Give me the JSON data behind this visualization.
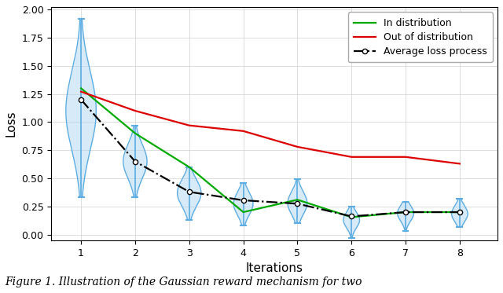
{
  "iterations": [
    1,
    2,
    3,
    4,
    5,
    6,
    7,
    8
  ],
  "in_dist": [
    1.3,
    0.9,
    0.6,
    0.2,
    0.31,
    0.155,
    0.2,
    0.2
  ],
  "out_dist": [
    1.27,
    1.1,
    0.97,
    0.92,
    0.78,
    0.69,
    0.69,
    0.63
  ],
  "avg_loss": [
    1.2,
    0.65,
    0.38,
    0.305,
    0.275,
    0.162,
    0.2,
    0.2
  ],
  "violin_centers": [
    1.1,
    0.65,
    0.37,
    0.275,
    0.28,
    0.13,
    0.19,
    0.185
  ],
  "violin_mins": [
    0.33,
    0.33,
    0.13,
    0.08,
    0.1,
    -0.03,
    0.03,
    0.07
  ],
  "violin_maxs": [
    1.92,
    0.97,
    0.6,
    0.46,
    0.49,
    0.25,
    0.29,
    0.32
  ],
  "violin_spreads": [
    0.35,
    0.15,
    0.12,
    0.1,
    0.1,
    0.07,
    0.07,
    0.07
  ],
  "violin_widths": [
    0.28,
    0.22,
    0.22,
    0.18,
    0.18,
    0.15,
    0.15,
    0.15
  ],
  "green_color": "#00aa00",
  "red_color": "#dd0000",
  "black_color": "#000000",
  "violin_face_color": "#aed6f1",
  "violin_edge_color": "#5dade2",
  "marker_color": "#ffffff",
  "marker_edge_color": "#000000",
  "ylim": [
    -0.05,
    2.02
  ],
  "xlim": [
    0.45,
    8.7
  ],
  "yticks": [
    0.0,
    0.25,
    0.5,
    0.75,
    1.0,
    1.25,
    1.5,
    1.75,
    2.0
  ],
  "xticks": [
    1,
    2,
    3,
    4,
    5,
    6,
    7,
    8
  ],
  "xlabel": "Iterations",
  "ylabel": "Loss",
  "legend_labels": [
    "In distribution",
    "Out of distribution",
    "Average loss process"
  ],
  "caption": "Figure 1. Illustration of the Gaussian reward mechanism for two",
  "fig_width": 6.4,
  "fig_height": 3.73,
  "dpi": 100
}
